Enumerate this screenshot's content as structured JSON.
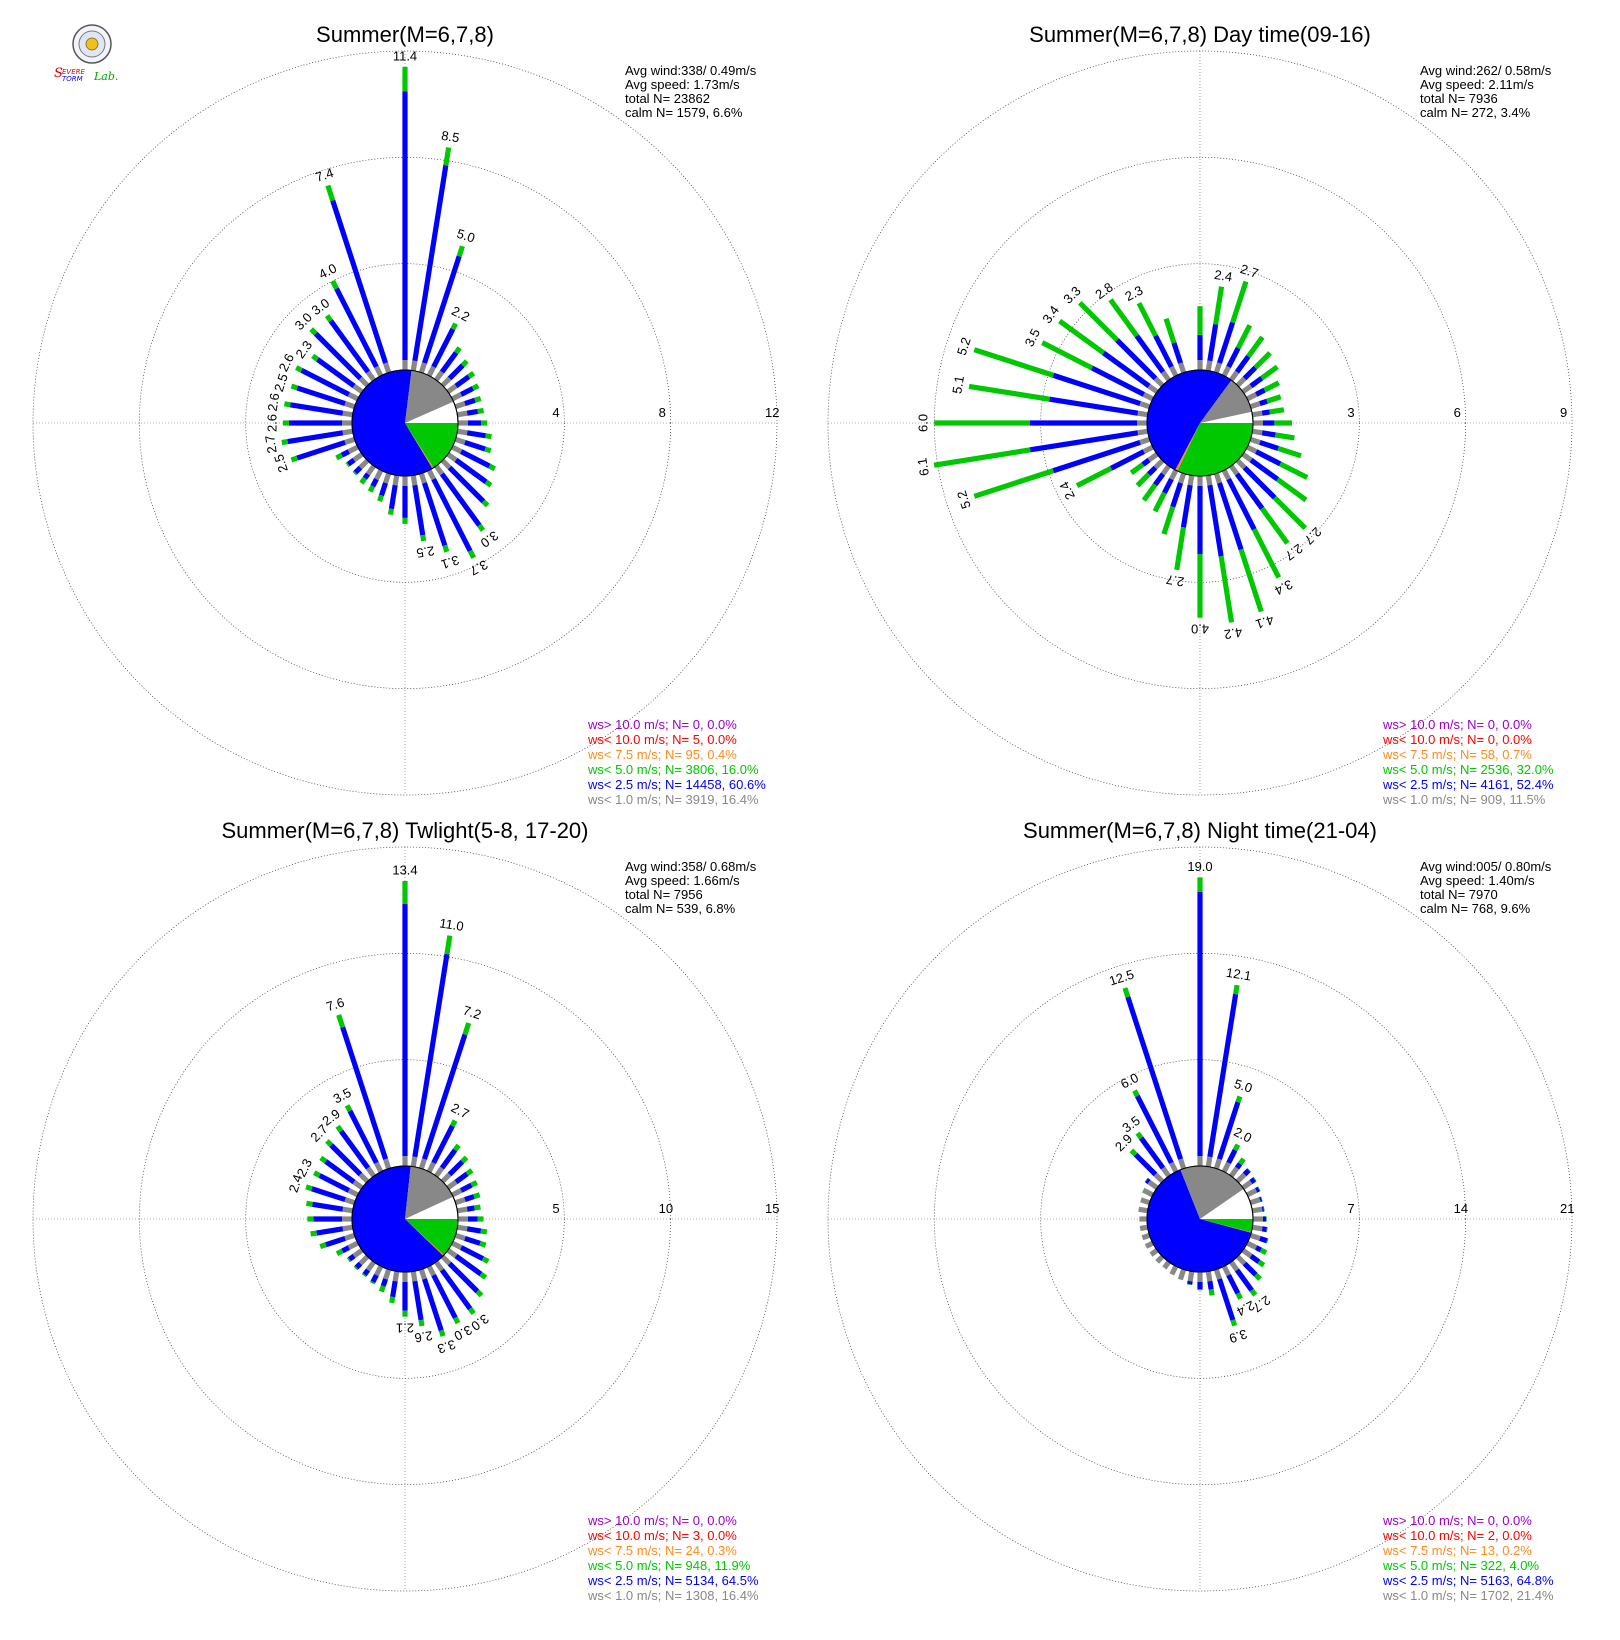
{
  "logo": {
    "line1": "Severe",
    "line2": "Storm",
    "line3": "Lab.",
    "colors": {
      "s": "#e00000",
      "storm": "#0000ee",
      "lab": "#00aa00"
    }
  },
  "colors": {
    "gt10": "#9900cc",
    "lt10": "#ff0000",
    "lt7_5": "#ff8c1a",
    "lt5": "#00c800",
    "lt2_5": "#0000ff",
    "lt1": "#888888",
    "wedge_light": "#ffffff",
    "grid": "#000000"
  },
  "chart_data": [
    {
      "type": "wind-rose",
      "title": "Summer(M=6,7,8)",
      "rings": [
        "4",
        "8",
        "12"
      ],
      "rmax": 12,
      "stats": {
        "avg_wind": "Avg wind:338/ 0.49m/s",
        "avg_speed": "Avg speed: 1.73m/s",
        "total": "total N=      23862",
        "calm": "calm N=   1579,   6.6%"
      },
      "legend": [
        "ws> 10.0 m/s; N=      0,  0.0%",
        "ws< 10.0 m/s; N=      5,  0.0%",
        "ws<  7.5 m/s; N=     95,  0.4%",
        "ws<  5.0 m/s; N=  3806, 16.0%",
        "ws<  2.5 m/s; N= 14458, 60.6%",
        "ws<  1.0 m/s; N=  3919, 16.4%"
      ],
      "pie": [
        16.4,
        60.6,
        16.0,
        0.4,
        0.0,
        0.0
      ],
      "totals": [
        11.4,
        8.5,
        5.0,
        2.2,
        1.5,
        1.3,
        1.2,
        1.1,
        1.0,
        1.0,
        1.1,
        1.3,
        1.4,
        1.8,
        2.0,
        2.4,
        3.0,
        3.7,
        3.1,
        2.5,
        1.8,
        1.5,
        1.1,
        0.9,
        0.8,
        0.7,
        0.7,
        0.9,
        2.5,
        2.7,
        2.6,
        2.6,
        2.5,
        2.6,
        2.3,
        3.0,
        3.0,
        4.0,
        7.4
      ],
      "labels": [
        11.4,
        8.5,
        5.0,
        2.2,
        null,
        null,
        null,
        null,
        null,
        null,
        null,
        null,
        null,
        null,
        null,
        null,
        3.0,
        3.7,
        3.1,
        2.5,
        null,
        null,
        null,
        null,
        null,
        null,
        null,
        null,
        2.5,
        2.7,
        2.6,
        2.6,
        2.5,
        2.6,
        2.3,
        3.0,
        3.0,
        4.0,
        7.4
      ],
      "green_frac": 0.08
    },
    {
      "type": "wind-rose",
      "title": "Summer(M=6,7,8) Day time(09-16)",
      "rings": [
        "3",
        "6",
        "9"
      ],
      "rmax": 9,
      "stats": {
        "avg_wind": "Avg wind:262/ 0.58m/s",
        "avg_speed": "Avg speed: 2.11m/s",
        "total": "total N=      7936",
        "calm": "calm N=    272,   3.4%"
      },
      "legend": [
        "ws> 10.0 m/s; N=      0,  0.0%",
        "ws< 10.0 m/s; N=      0,  0.0%",
        "ws<  7.5 m/s; N=     58,  0.7%",
        "ws<  5.0 m/s; N=  2536, 32.0%",
        "ws<  2.5 m/s; N=  4161, 52.4%",
        "ws<  1.0 m/s; N=   909, 11.5%"
      ],
      "pie": [
        11.5,
        52.4,
        32.0,
        0.7,
        0.0,
        0.0
      ],
      "totals": [
        1.8,
        2.4,
        2.7,
        1.6,
        1.5,
        1.3,
        1.2,
        1.0,
        0.9,
        0.9,
        1.1,
        1.2,
        1.5,
        1.9,
        2.2,
        2.7,
        2.7,
        3.4,
        4.1,
        4.2,
        4.0,
        2.7,
        1.8,
        1.3,
        1.2,
        1.0,
        0.9,
        2.4,
        5.2,
        6.1,
        6.0,
        5.1,
        5.2,
        3.5,
        3.4,
        3.3,
        2.8,
        2.3,
        1.6
      ],
      "labels": [
        null,
        2.4,
        2.7,
        null,
        null,
        null,
        null,
        null,
        null,
        null,
        null,
        null,
        null,
        null,
        null,
        2.7,
        2.7,
        3.4,
        4.1,
        4.2,
        4.0,
        2.7,
        null,
        null,
        null,
        null,
        null,
        2.4,
        5.2,
        6.1,
        6.0,
        5.1,
        5.2,
        3.5,
        3.4,
        3.3,
        2.8,
        2.3,
        null
      ],
      "green_frac": 0.45
    },
    {
      "type": "wind-rose",
      "title": "Summer(M=6,7,8) Twlight(5-8, 17-20)",
      "rings": [
        "5",
        "10",
        "15"
      ],
      "rmax": 15,
      "stats": {
        "avg_wind": "Avg wind:358/ 0.68m/s",
        "avg_speed": "Avg speed: 1.66m/s",
        "total": "total N=      7956",
        "calm": "calm N=    539,   6.8%"
      },
      "legend": [
        "ws> 10.0 m/s; N=      0,  0.0%",
        "ws< 10.0 m/s; N=      3,  0.0%",
        "ws<  7.5 m/s; N=     24,  0.3%",
        "ws<  5.0 m/s; N=   948, 11.9%",
        "ws<  2.5 m/s; N=  5134, 64.5%",
        "ws<  1.0 m/s; N=  1308, 16.4%"
      ],
      "pie": [
        16.4,
        64.5,
        11.9,
        0.3,
        0.0,
        0.0
      ],
      "totals": [
        13.4,
        11.0,
        7.2,
        2.7,
        1.8,
        1.6,
        1.4,
        1.3,
        1.2,
        1.1,
        1.2,
        1.4,
        1.5,
        1.9,
        2.2,
        2.6,
        3.0,
        3.0,
        3.3,
        2.6,
        2.1,
        1.5,
        1.1,
        0.9,
        0.8,
        0.8,
        0.8,
        1.1,
        1.7,
        2.0,
        2.1,
        2.2,
        2.4,
        2.3,
        2.4,
        2.7,
        2.9,
        3.5,
        7.6
      ],
      "labels": [
        13.4,
        11.0,
        7.2,
        2.7,
        null,
        null,
        null,
        null,
        null,
        null,
        null,
        null,
        null,
        null,
        null,
        null,
        3.0,
        3.0,
        3.3,
        2.6,
        2.1,
        null,
        null,
        null,
        null,
        null,
        null,
        null,
        null,
        null,
        null,
        null,
        2.4,
        2.3,
        null,
        2.7,
        2.9,
        3.5,
        7.6
      ],
      "green_frac": 0.08
    },
    {
      "type": "wind-rose",
      "title": "Summer(M=6,7,8) Night time(21-04)",
      "rings": [
        "7",
        "14",
        "21"
      ],
      "rmax": 21,
      "stats": {
        "avg_wind": "Avg wind:005/ 0.80m/s",
        "avg_speed": "Avg speed: 1.40m/s",
        "total": "total N=      7970",
        "calm": "calm N=    768,   9.6%"
      },
      "legend": [
        "ws> 10.0 m/s; N=      0,  0.0%",
        "ws< 10.0 m/s; N=      2,  0.0%",
        "ws<  7.5 m/s; N=     13,  0.2%",
        "ws<  5.0 m/s; N=   322,  4.0%",
        "ws<  2.5 m/s; N=  5163, 64.8%",
        "ws<  1.0 m/s; N=  1702, 21.4%"
      ],
      "pie": [
        21.4,
        64.8,
        4.0,
        0.2,
        0.0,
        0.0
      ],
      "totals": [
        19.0,
        12.1,
        5.0,
        2.0,
        1.4,
        1.1,
        1.0,
        0.9,
        0.8,
        0.8,
        0.9,
        1.0,
        1.2,
        1.4,
        1.7,
        2.1,
        2.7,
        2.4,
        3.9,
        1.6,
        1.2,
        0.9,
        0.7,
        0.6,
        0.5,
        0.5,
        0.5,
        0.5,
        0.5,
        0.5,
        0.5,
        0.6,
        0.6,
        0.7,
        0.9,
        2.9,
        3.5,
        6.0,
        12.5
      ],
      "labels": [
        19.0,
        12.1,
        5.0,
        2.0,
        null,
        null,
        null,
        null,
        null,
        null,
        null,
        null,
        null,
        null,
        null,
        null,
        2.7,
        2.4,
        3.9,
        null,
        null,
        null,
        null,
        null,
        null,
        null,
        null,
        null,
        null,
        null,
        null,
        null,
        null,
        null,
        null,
        2.9,
        3.5,
        6.0,
        12.5
      ],
      "green_frac": 0.05
    }
  ]
}
